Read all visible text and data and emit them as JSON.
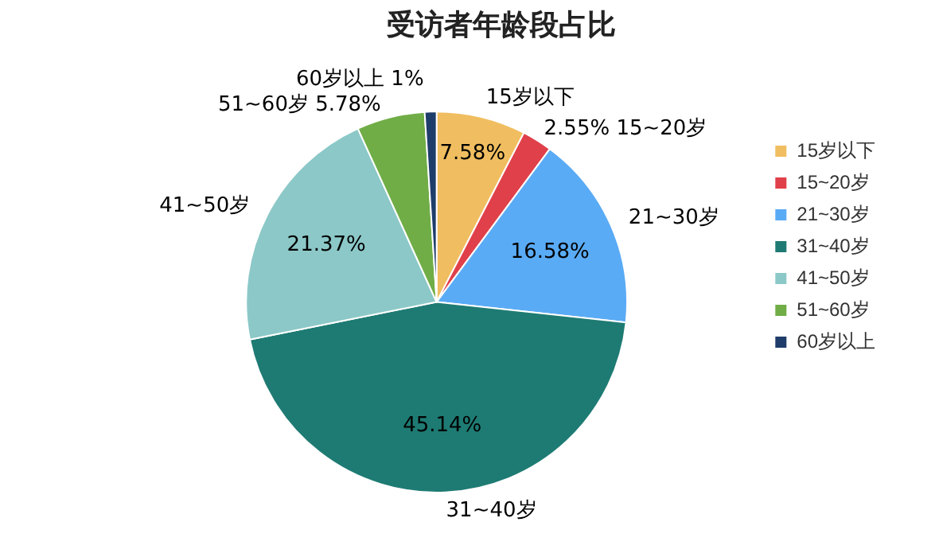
{
  "chart_data": {
    "type": "pie",
    "title": "受访者年龄段占比",
    "categories": [
      "15岁以下",
      "15~20岁",
      "21~30岁",
      "31~40岁",
      "41~50岁",
      "51~60岁",
      "60岁以上"
    ],
    "values": [
      7.58,
      2.55,
      16.58,
      45.14,
      21.37,
      5.78,
      1
    ],
    "value_labels": [
      "7.58%",
      "2.55%",
      "16.58%",
      "45.14%",
      "21.37%",
      "5.78%",
      "1%"
    ],
    "colors": [
      "#f0be60",
      "#e0404a",
      "#5aabf5",
      "#1e7b73",
      "#8cc8c8",
      "#70ad47",
      "#1f3d6b"
    ],
    "legend": "right"
  }
}
